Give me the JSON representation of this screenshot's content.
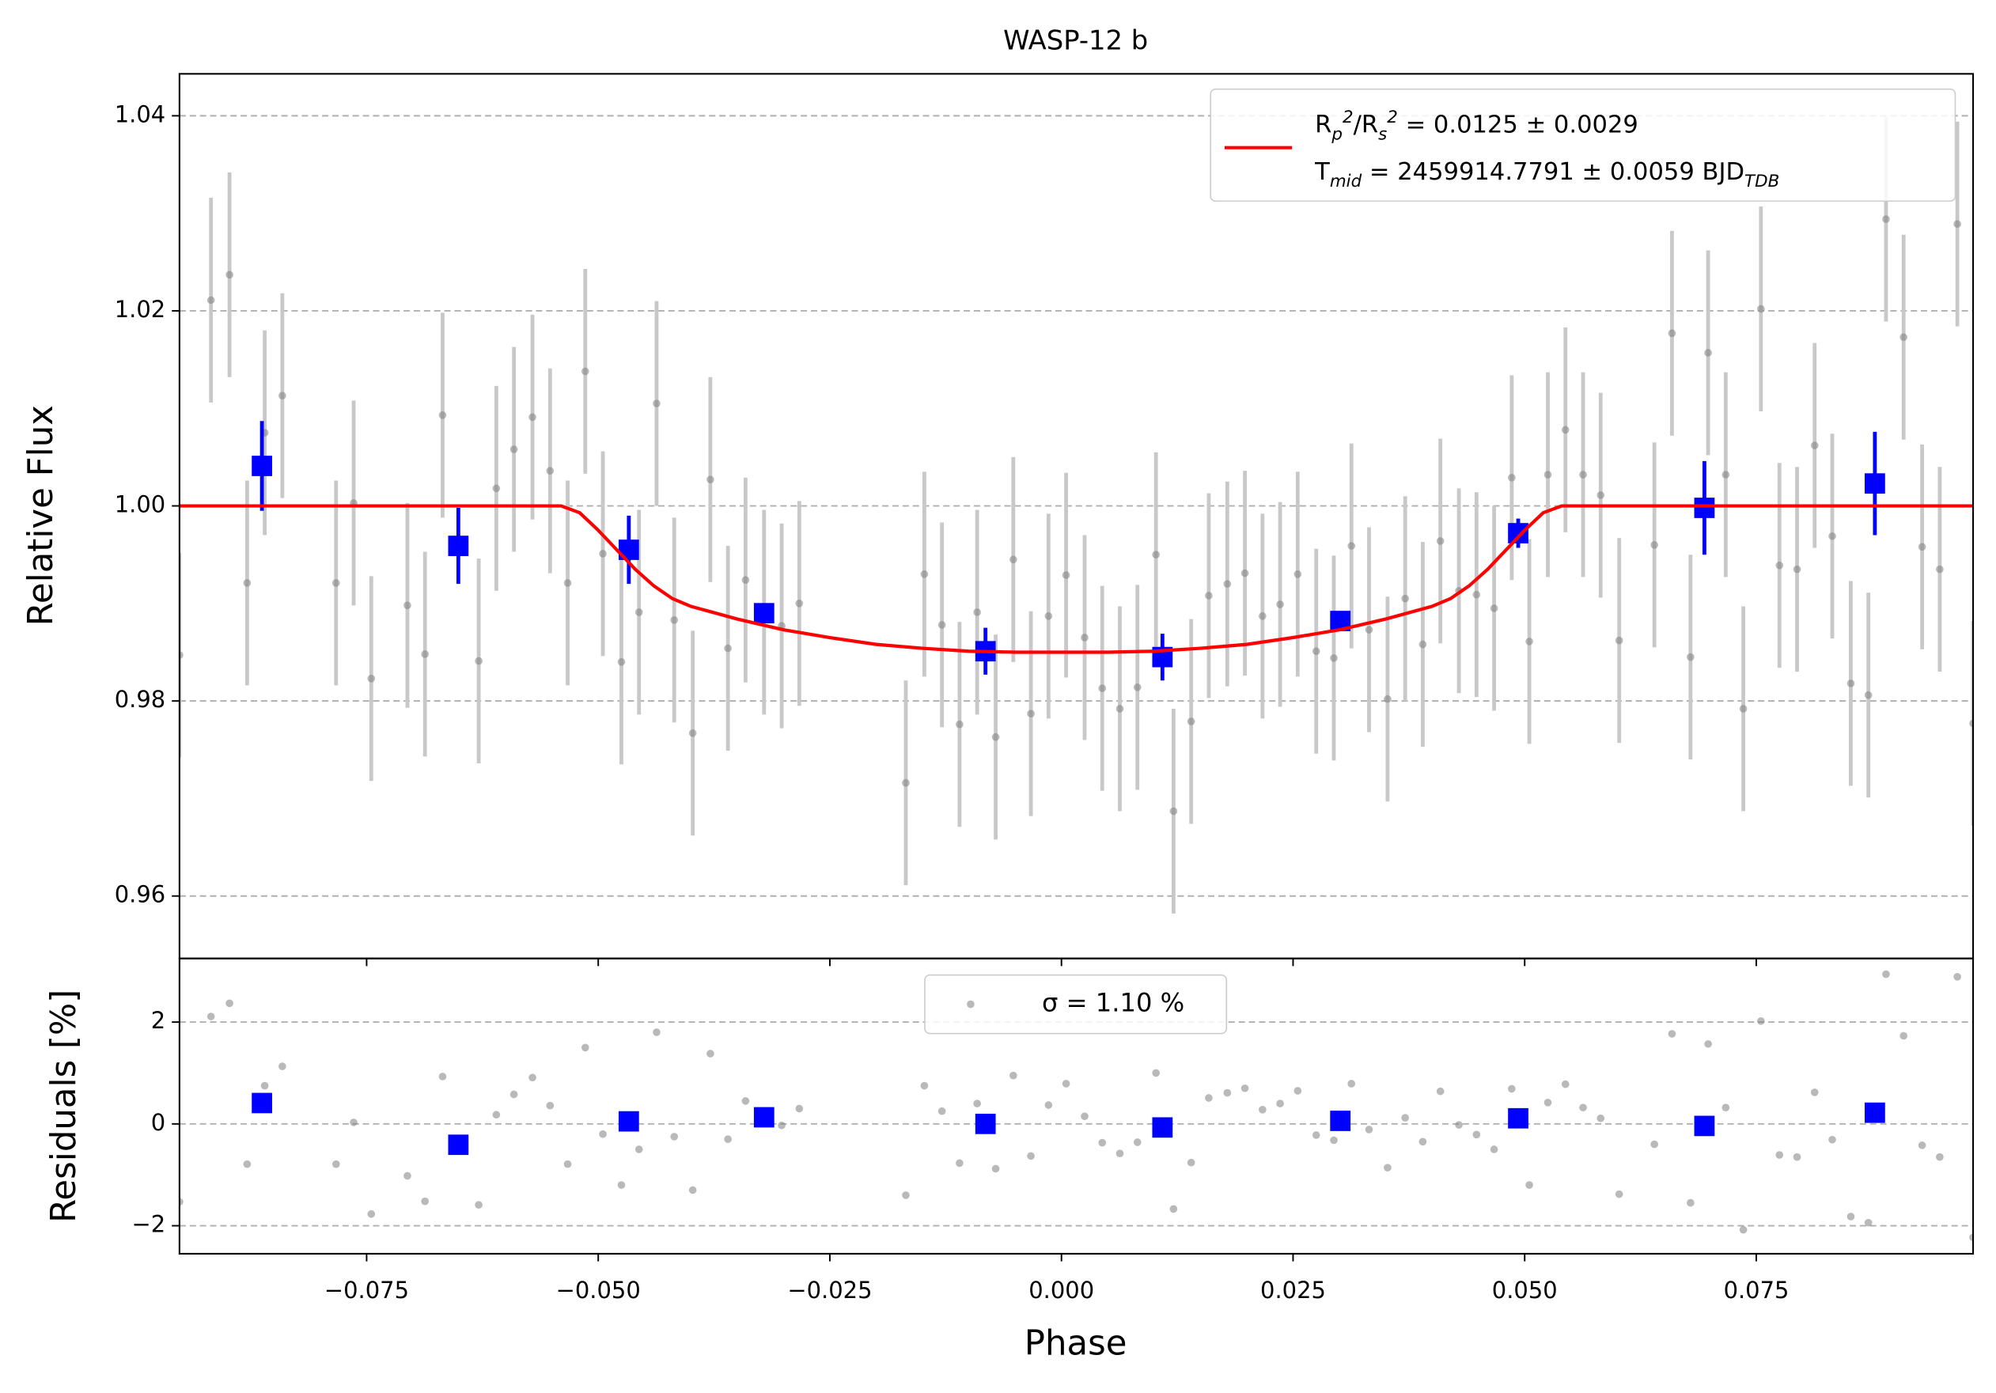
{
  "chart_data": [
    {
      "type": "scatter",
      "title": "WASP-12 b",
      "ylabel": "Relative Flux",
      "xlim": [
        -0.0952,
        0.0984
      ],
      "ylim": [
        0.9536,
        1.0443
      ],
      "yticks": [
        1.04,
        1.02,
        {
          "value": 1,
          "label": "1.00"
        },
        0.98,
        0.96
      ],
      "grid": "y",
      "legend": "upper right",
      "series": [
        {
          "type": "errorbar",
          "color": "#808080",
          "error": 0.0105,
          "x": [
            -0.0952,
            -0.0918,
            -0.0898,
            -0.0879,
            -0.086,
            -0.0841,
            -0.0783,
            -0.0764,
            -0.0745,
            -0.0706,
            -0.0687,
            -0.0668,
            -0.0629,
            -0.061,
            -0.0591,
            -0.0571,
            -0.0552,
            -0.0533,
            -0.0514,
            -0.0495,
            -0.0475,
            -0.0456,
            -0.0437,
            -0.0418,
            -0.0398,
            -0.0379,
            -0.036,
            -0.0341,
            -0.0321,
            -0.0302,
            -0.0283,
            -0.0168,
            -0.0148,
            -0.0129,
            -0.011,
            -0.0091,
            -0.0071,
            -0.0052,
            -0.0033,
            -0.0014,
            0.0005,
            0.0025,
            0.0044,
            0.0063,
            0.0082,
            0.0102,
            0.0121,
            0.014,
            0.0159,
            0.0179,
            0.0198,
            0.0217,
            0.0236,
            0.0255,
            0.0275,
            0.0294,
            0.0313,
            0.0332,
            0.0352,
            0.0371,
            0.039,
            0.0409,
            0.0429,
            0.0448,
            0.0467,
            0.0486,
            0.0505,
            0.0525,
            0.0544,
            0.0563,
            0.0582,
            0.0602,
            0.064,
            0.0659,
            0.0679,
            0.0698,
            0.0717,
            0.0736,
            0.0755,
            0.0775,
            0.0794,
            0.0813,
            0.0832,
            0.0852,
            0.0871,
            0.089,
            0.0909,
            0.0929,
            0.0948,
            0.0967,
            0.0984
          ],
          "values": [
            0.9847,
            1.0211,
            1.0237,
            0.9921,
            1.0075,
            1.0113,
            0.9921,
            1.0003,
            0.9823,
            0.9898,
            0.9848,
            1.0093,
            0.9841,
            1.0018,
            1.0058,
            1.0091,
            1.0036,
            0.9921,
            1.0138,
            0.9951,
            0.984,
            0.9891,
            1.0105,
            0.9883,
            0.9767,
            1.0027,
            0.9854,
            0.9924,
            0.9891,
            0.9877,
            0.99,
            0.9716,
            0.993,
            0.9878,
            0.9776,
            0.9891,
            0.9763,
            0.9945,
            0.9787,
            0.9887,
            0.9929,
            0.9865,
            0.9813,
            0.9792,
            0.9814,
            0.995,
            0.9687,
            0.9779,
            0.9908,
            0.992,
            0.9931,
            0.9887,
            0.9899,
            0.993,
            0.9851,
            0.9844,
            0.9959,
            0.9873,
            0.9802,
            0.9905,
            0.9858,
            0.9964,
            0.9913,
            0.9909,
            0.9895,
            1.0029,
            0.9861,
            1.0032,
            1.0078,
            1.0032,
            1.0011,
            0.9862,
            0.996,
            1.0177,
            0.9845,
            1.0157,
            1.0032,
            0.9792,
            1.0202,
            0.9939,
            0.9935,
            1.0062,
            0.9969,
            0.9818,
            0.9806,
            1.0294,
            1.0173,
            0.9958,
            0.9935,
            1.0289,
            0.9777
          ]
        },
        {
          "type": "errorbar",
          "color": "#0000ff",
          "x": [
            -0.0863,
            -0.0651,
            -0.0467,
            -0.0321,
            -0.0082,
            0.0109,
            0.0301,
            0.0493,
            0.0694,
            0.0878
          ],
          "values": [
            1.0041,
            0.9959,
            0.9955,
            0.989,
            0.9851,
            0.9845,
            0.9882,
            0.9972,
            0.9998,
            1.0023
          ],
          "errors": [
            0.0046,
            0.0039,
            0.0035,
            0.001,
            0.0024,
            0.0024,
            0.001,
            0.0015,
            0.0048,
            0.0053
          ]
        },
        {
          "type": "line",
          "color": "#ff0000",
          "name": "R_p^2/R_s^2 = 0.0125 ± 0.0029\nT_{mid} = 2459914.7791 ± 0.0059 BJD_{TDB}",
          "x": [
            -0.0952,
            -0.054,
            -0.052,
            -0.05,
            -0.048,
            -0.046,
            -0.044,
            -0.042,
            -0.04,
            -0.035,
            -0.03,
            -0.025,
            -0.02,
            -0.015,
            -0.01,
            -0.005,
            0,
            0.005,
            0.01,
            0.015,
            0.02,
            0.025,
            0.03,
            0.035,
            0.04,
            0.042,
            0.044,
            0.046,
            0.048,
            0.05,
            0.052,
            0.054,
            0.0984
          ],
          "values": [
            1,
            1,
            0.9993,
            0.9975,
            0.9955,
            0.9935,
            0.9918,
            0.9905,
            0.9897,
            0.9884,
            0.9873,
            0.9865,
            0.9858,
            0.9854,
            0.9851,
            0.985,
            0.985,
            0.985,
            0.9851,
            0.9854,
            0.9858,
            0.9865,
            0.9873,
            0.9884,
            0.9897,
            0.9905,
            0.9918,
            0.9935,
            0.9955,
            0.9975,
            0.9993,
            1,
            1
          ]
        }
      ]
    },
    {
      "type": "scatter",
      "xlabel": "Phase",
      "ylabel": "Residuals [%]",
      "xlim": [
        -0.0952,
        0.0984
      ],
      "ylim": [
        -2.55,
        3.25
      ],
      "xticks": [
        {
          "value": -0.075,
          "label": "−0.075"
        },
        {
          "value": -0.05,
          "label": "−0.050"
        },
        {
          "value": -0.025,
          "label": "−0.025"
        },
        {
          "value": 0,
          "label": "0.000"
        },
        0.025,
        {
          "value": 0.05,
          "label": "0.050"
        },
        0.075
      ],
      "yticks": [
        {
          "value": -2,
          "label": "−2"
        },
        0,
        2
      ],
      "grid": "y",
      "legend": "upper center",
      "series": [
        {
          "type": "points",
          "color": "#808080",
          "name": "σ = 1.10 %",
          "x": [
            -0.0952,
            -0.0918,
            -0.0898,
            -0.0879,
            -0.086,
            -0.0841,
            -0.0783,
            -0.0764,
            -0.0745,
            -0.0706,
            -0.0687,
            -0.0668,
            -0.0629,
            -0.061,
            -0.0591,
            -0.0571,
            -0.0552,
            -0.0533,
            -0.0514,
            -0.0495,
            -0.0475,
            -0.0456,
            -0.0437,
            -0.0418,
            -0.0398,
            -0.0379,
            -0.036,
            -0.0341,
            -0.0321,
            -0.0302,
            -0.0283,
            -0.0168,
            -0.0148,
            -0.0129,
            -0.011,
            -0.0091,
            -0.0071,
            -0.0052,
            -0.0033,
            -0.0014,
            0.0005,
            0.0025,
            0.0044,
            0.0063,
            0.0082,
            0.0102,
            0.0121,
            0.014,
            0.0159,
            0.0179,
            0.0198,
            0.0217,
            0.0236,
            0.0255,
            0.0275,
            0.0294,
            0.0313,
            0.0332,
            0.0352,
            0.0371,
            0.039,
            0.0409,
            0.0429,
            0.0448,
            0.0467,
            0.0486,
            0.0505,
            0.0525,
            0.0544,
            0.0563,
            0.0582,
            0.0602,
            0.064,
            0.0659,
            0.0679,
            0.0698,
            0.0717,
            0.0736,
            0.0755,
            0.0775,
            0.0794,
            0.0813,
            0.0832,
            0.0852,
            0.0871,
            0.089,
            0.0909,
            0.0929,
            0.0948,
            0.0967,
            0.0984
          ],
          "values": [
            -1.53,
            2.11,
            2.37,
            -0.79,
            0.75,
            1.13,
            -0.79,
            0.03,
            -1.77,
            -1.02,
            -1.52,
            0.93,
            -1.59,
            0.18,
            0.58,
            0.91,
            0.36,
            -0.79,
            1.5,
            -0.2,
            -1.2,
            -0.5,
            1.8,
            -0.25,
            -1.3,
            1.38,
            -0.3,
            0.45,
            0.08,
            -0.03,
            0.3,
            -1.4,
            0.75,
            0.25,
            -0.77,
            0.4,
            -0.88,
            0.95,
            -0.63,
            0.37,
            0.79,
            0.15,
            -0.37,
            -0.58,
            -0.36,
            1,
            -1.67,
            -0.76,
            0.51,
            0.61,
            0.7,
            0.28,
            0.4,
            0.65,
            -0.22,
            -0.32,
            0.79,
            -0.11,
            -0.86,
            0.12,
            -0.35,
            0.64,
            -0.02,
            -0.21,
            -0.5,
            0.69,
            -1.2,
            0.42,
            0.78,
            0.32,
            0.11,
            -1.38,
            -0.4,
            1.77,
            -1.55,
            1.57,
            0.32,
            -2.08,
            2.02,
            -0.61,
            -0.65,
            0.62,
            -0.31,
            -1.82,
            -1.94,
            2.94,
            1.73,
            -0.42,
            -0.65,
            2.89,
            -2.23
          ]
        },
        {
          "type": "points",
          "color": "#0000ff",
          "marker": "square",
          "x": [
            -0.0863,
            -0.0651,
            -0.0467,
            -0.0321,
            -0.0082,
            0.0109,
            0.0301,
            0.0493,
            0.0694,
            0.0878
          ],
          "values": [
            0.41,
            -0.41,
            0.05,
            0.13,
            0,
            -0.07,
            0.06,
            0.11,
            -0.04,
            0.22
          ]
        }
      ]
    }
  ]
}
